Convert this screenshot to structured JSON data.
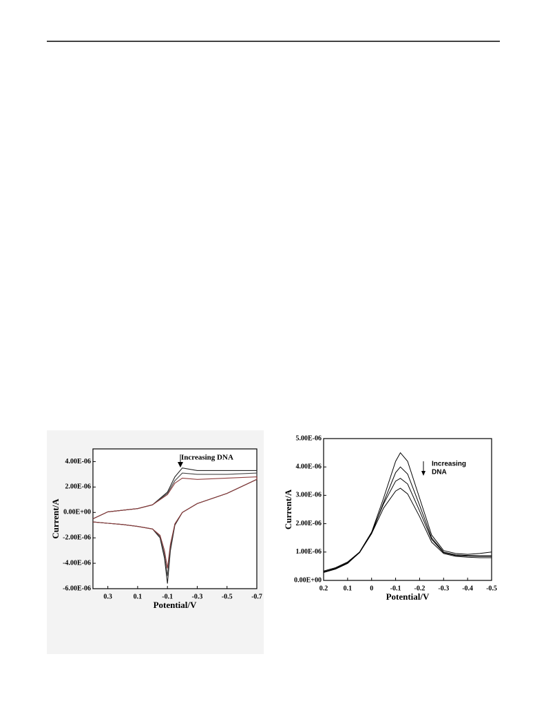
{
  "chart_data": [
    {
      "type": "line",
      "y_label": "Current/A",
      "x_label": "Potential/V",
      "annotation": "Increasing DNA",
      "x": [
        0.4,
        0.3,
        0.2,
        0.1,
        0,
        -0.05,
        -0.08,
        -0.1,
        -0.12,
        -0.15,
        -0.2,
        -0.3,
        -0.5,
        -0.7,
        -0.7,
        -0.5,
        -0.3,
        -0.2,
        -0.15,
        -0.1,
        0,
        0.1,
        0.3,
        0.4
      ],
      "series": [
        {
          "color": "#222222",
          "values": [
            -7.5e-07,
            -8.5e-07,
            -9.5e-07,
            -1.1e-06,
            -1.3e-06,
            -2e-06,
            -3.6e-06,
            -5.6e-06,
            -3e-06,
            -1e-06,
            0,
            7e-07,
            1.5e-06,
            2.6e-06,
            3.3e-06,
            3.3e-06,
            3.3e-06,
            3.5e-06,
            2.8e-06,
            1.6e-06,
            6e-07,
            3e-07,
            5e-08,
            -5e-07
          ]
        },
        {
          "color": "#444444",
          "values": [
            -7.5e-07,
            -8.5e-07,
            -9.5e-07,
            -1.1e-06,
            -1.3e-06,
            -1.9e-06,
            -3.3e-06,
            -5e-06,
            -2.8e-06,
            -9e-07,
            0,
            7e-07,
            1.5e-06,
            2.6e-06,
            3.1e-06,
            3e-06,
            3e-06,
            3.1e-06,
            2.5e-06,
            1.5e-06,
            6e-07,
            3e-07,
            5e-08,
            -5e-07
          ]
        },
        {
          "color": "#8b3a3a",
          "values": [
            -7.5e-07,
            -8.5e-07,
            -9.5e-07,
            -1.1e-06,
            -1.3e-06,
            -1.8e-06,
            -3e-06,
            -4.4e-06,
            -2.5e-06,
            -9e-07,
            0,
            7e-07,
            1.5e-06,
            2.6e-06,
            2.8e-06,
            2.7e-06,
            2.6e-06,
            2.7e-06,
            2.3e-06,
            1.4e-06,
            6e-07,
            3e-07,
            5e-08,
            -5e-07
          ]
        }
      ],
      "xlim": [
        0.4,
        -0.7
      ],
      "xticks": [
        0.3,
        0.1,
        -0.1,
        -0.3,
        -0.5,
        -0.7
      ],
      "ylim": [
        -6e-06,
        5e-06
      ],
      "yticks": [
        {
          "value": -6e-06,
          "label": "-6.00E-06"
        },
        {
          "value": -4e-06,
          "label": "-4.00E-06"
        },
        {
          "value": -2e-06,
          "label": "-2.00E-06"
        },
        {
          "value": 0,
          "label": "0.00E+00"
        },
        {
          "value": 2e-06,
          "label": "2.00E-06"
        },
        {
          "value": 4e-06,
          "label": "4.00E-06"
        }
      ]
    },
    {
      "type": "line",
      "y_label": "Current/A",
      "x_label": "Potential/V",
      "annotation": [
        "Increasing",
        "DNA"
      ],
      "x": [
        0.2,
        0.15,
        0.1,
        0.05,
        0,
        -0.05,
        -0.1,
        -0.12,
        -0.15,
        -0.2,
        -0.25,
        -0.3,
        -0.35,
        -0.4,
        -0.45,
        -0.5
      ],
      "series": [
        {
          "color": "#000000",
          "values": [
            3.3e-07,
            4.5e-07,
            6.5e-07,
            1e-06,
            1.7e-06,
            2.9e-06,
            4.2e-06,
            4.5e-06,
            4.2e-06,
            2.9e-06,
            1.6e-06,
            1.05e-06,
            9.5e-07,
            9.2e-07,
            9.5e-07,
            1e-06
          ]
        },
        {
          "color": "#000000",
          "values": [
            3e-07,
            4.2e-07,
            6.2e-07,
            9.8e-07,
            1.65e-06,
            2.75e-06,
            3.8e-06,
            4e-06,
            3.75e-06,
            2.65e-06,
            1.5e-06,
            1e-06,
            9e-07,
            8.8e-07,
            8.7e-07,
            8.7e-07
          ]
        },
        {
          "color": "#000000",
          "values": [
            3e-07,
            4.2e-07,
            6.2e-07,
            1e-06,
            1.7e-06,
            2.7e-06,
            3.5e-06,
            3.6e-06,
            3.4e-06,
            2.45e-06,
            1.45e-06,
            9.8e-07,
            8.8e-07,
            8.6e-07,
            8.5e-07,
            8.5e-07
          ]
        },
        {
          "color": "#000000",
          "values": [
            2.8e-07,
            4e-07,
            6e-07,
            9.8e-07,
            1.65e-06,
            2.55e-06,
            3.15e-06,
            3.25e-06,
            3.05e-06,
            2.25e-06,
            1.35e-06,
            9.5e-07,
            8.5e-07,
            8.2e-07,
            8e-07,
            8e-07
          ]
        }
      ],
      "xlim": [
        0.2,
        -0.5
      ],
      "xticks": [
        0.2,
        0.1,
        0,
        -0.1,
        -0.2,
        -0.3,
        -0.4,
        -0.5
      ],
      "ylim": [
        0,
        5e-06
      ],
      "yticks": [
        {
          "value": 0,
          "label": "0.00E+00"
        },
        {
          "value": 1e-06,
          "label": "1.00E-06"
        },
        {
          "value": 2e-06,
          "label": "2.00E-06"
        },
        {
          "value": 3e-06,
          "label": "3.00E-06"
        },
        {
          "value": 4e-06,
          "label": "4.00E-06"
        },
        {
          "value": 5e-06,
          "label": "5.00E-06"
        }
      ]
    }
  ]
}
